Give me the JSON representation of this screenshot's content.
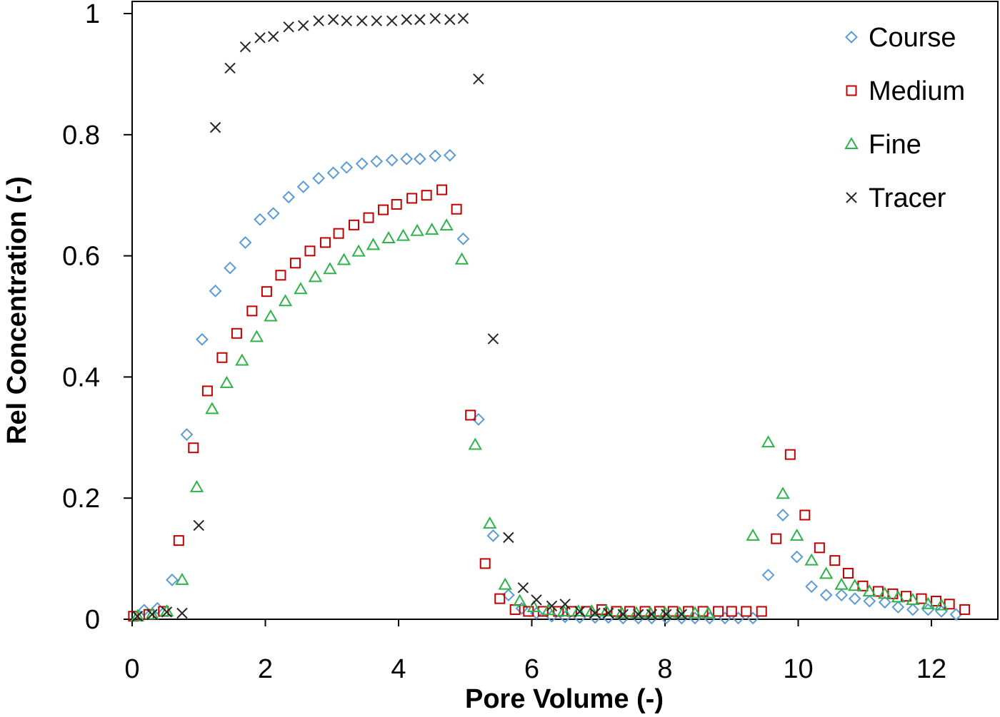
{
  "chart_data": {
    "type": "scatter",
    "title": "",
    "xlabel": "Pore Volume  (-)",
    "ylabel": "Rel Concentration  (-)",
    "xlim": [
      0,
      12.5
    ],
    "ylim": [
      0,
      1
    ],
    "xticks": [
      0,
      2,
      4,
      6,
      8,
      10,
      12
    ],
    "yticks": [
      0,
      0.2,
      0.4,
      0.6,
      0.8,
      1
    ],
    "xtick_labels": [
      "0",
      "2",
      "4",
      "6",
      "8",
      "10",
      "12"
    ],
    "ytick_labels": [
      "0",
      "0.2",
      "0.4",
      "0.6",
      "0.8",
      "1"
    ],
    "grid": false,
    "legend_position": "top-right",
    "series": [
      {
        "name": "Course",
        "marker": "diamond",
        "color": "#5B9BD5",
        "points": [
          [
            0.18,
            0.015
          ],
          [
            0.38,
            0.018
          ],
          [
            0.6,
            0.065
          ],
          [
            0.82,
            0.305
          ],
          [
            1.05,
            0.462
          ],
          [
            1.25,
            0.542
          ],
          [
            1.47,
            0.58
          ],
          [
            1.7,
            0.622
          ],
          [
            1.92,
            0.66
          ],
          [
            2.12,
            0.67
          ],
          [
            2.35,
            0.697
          ],
          [
            2.57,
            0.714
          ],
          [
            2.8,
            0.728
          ],
          [
            3.02,
            0.737
          ],
          [
            3.22,
            0.746
          ],
          [
            3.45,
            0.752
          ],
          [
            3.67,
            0.756
          ],
          [
            3.9,
            0.758
          ],
          [
            4.12,
            0.76
          ],
          [
            4.32,
            0.76
          ],
          [
            4.55,
            0.765
          ],
          [
            4.77,
            0.766
          ],
          [
            4.97,
            0.628
          ],
          [
            5.2,
            0.33
          ],
          [
            5.42,
            0.138
          ],
          [
            5.65,
            0.04
          ],
          [
            5.85,
            0.018
          ],
          [
            6.07,
            0.01
          ],
          [
            6.3,
            0.005
          ],
          [
            6.5,
            0.004
          ],
          [
            6.72,
            0.003
          ],
          [
            6.95,
            0.003
          ],
          [
            7.15,
            0.003
          ],
          [
            7.37,
            0.002
          ],
          [
            7.6,
            0.002
          ],
          [
            7.8,
            0.002
          ],
          [
            8.02,
            0.002
          ],
          [
            8.25,
            0.002
          ],
          [
            8.45,
            0.002
          ],
          [
            8.67,
            0.002
          ],
          [
            8.9,
            0.002
          ],
          [
            9.1,
            0.002
          ],
          [
            9.32,
            0.002
          ],
          [
            9.55,
            0.073
          ],
          [
            9.77,
            0.172
          ],
          [
            9.98,
            0.103
          ],
          [
            10.2,
            0.054
          ],
          [
            10.42,
            0.04
          ],
          [
            10.65,
            0.04
          ],
          [
            10.85,
            0.034
          ],
          [
            11.07,
            0.03
          ],
          [
            11.3,
            0.028
          ],
          [
            11.5,
            0.02
          ],
          [
            11.72,
            0.016
          ],
          [
            11.95,
            0.016
          ],
          [
            12.15,
            0.013
          ],
          [
            12.37,
            0.008
          ]
        ]
      },
      {
        "name": "Medium",
        "marker": "square",
        "color": "#C00000",
        "points": [
          [
            0.02,
            0.005
          ],
          [
            0.25,
            0.008
          ],
          [
            0.47,
            0.013
          ],
          [
            0.7,
            0.13
          ],
          [
            0.92,
            0.283
          ],
          [
            1.13,
            0.377
          ],
          [
            1.35,
            0.432
          ],
          [
            1.57,
            0.472
          ],
          [
            1.8,
            0.509
          ],
          [
            2.02,
            0.541
          ],
          [
            2.23,
            0.568
          ],
          [
            2.45,
            0.588
          ],
          [
            2.67,
            0.608
          ],
          [
            2.9,
            0.622
          ],
          [
            3.1,
            0.637
          ],
          [
            3.33,
            0.651
          ],
          [
            3.55,
            0.663
          ],
          [
            3.77,
            0.676
          ],
          [
            3.97,
            0.685
          ],
          [
            4.2,
            0.695
          ],
          [
            4.42,
            0.7
          ],
          [
            4.65,
            0.709
          ],
          [
            4.87,
            0.677
          ],
          [
            5.08,
            0.337
          ],
          [
            5.3,
            0.092
          ],
          [
            5.52,
            0.034
          ],
          [
            5.75,
            0.016
          ],
          [
            5.95,
            0.013
          ],
          [
            6.17,
            0.013
          ],
          [
            6.4,
            0.013
          ],
          [
            6.6,
            0.013
          ],
          [
            6.82,
            0.013
          ],
          [
            7.05,
            0.016
          ],
          [
            7.27,
            0.013
          ],
          [
            7.47,
            0.013
          ],
          [
            7.7,
            0.013
          ],
          [
            7.92,
            0.013
          ],
          [
            8.12,
            0.013
          ],
          [
            8.35,
            0.013
          ],
          [
            8.57,
            0.013
          ],
          [
            8.8,
            0.013
          ],
          [
            9.0,
            0.013
          ],
          [
            9.22,
            0.013
          ],
          [
            9.45,
            0.013
          ],
          [
            9.67,
            0.133
          ],
          [
            9.88,
            0.272
          ],
          [
            10.1,
            0.172
          ],
          [
            10.32,
            0.118
          ],
          [
            10.55,
            0.097
          ],
          [
            10.75,
            0.076
          ],
          [
            10.97,
            0.055
          ],
          [
            11.2,
            0.046
          ],
          [
            11.42,
            0.042
          ],
          [
            11.62,
            0.038
          ],
          [
            11.85,
            0.034
          ],
          [
            12.07,
            0.03
          ],
          [
            12.27,
            0.025
          ],
          [
            12.5,
            0.016
          ]
        ]
      },
      {
        "name": "Fine",
        "marker": "triangle",
        "color": "#2DB34A",
        "points": [
          [
            0.08,
            0.005
          ],
          [
            0.3,
            0.008
          ],
          [
            0.52,
            0.013
          ],
          [
            0.75,
            0.065
          ],
          [
            0.97,
            0.218
          ],
          [
            1.2,
            0.347
          ],
          [
            1.42,
            0.39
          ],
          [
            1.65,
            0.427
          ],
          [
            1.87,
            0.466
          ],
          [
            2.08,
            0.5
          ],
          [
            2.3,
            0.525
          ],
          [
            2.53,
            0.545
          ],
          [
            2.75,
            0.565
          ],
          [
            2.97,
            0.578
          ],
          [
            3.18,
            0.593
          ],
          [
            3.4,
            0.607
          ],
          [
            3.62,
            0.618
          ],
          [
            3.85,
            0.629
          ],
          [
            4.07,
            0.633
          ],
          [
            4.28,
            0.641
          ],
          [
            4.5,
            0.643
          ],
          [
            4.72,
            0.65
          ],
          [
            4.95,
            0.594
          ],
          [
            5.15,
            0.288
          ],
          [
            5.37,
            0.158
          ],
          [
            5.6,
            0.057
          ],
          [
            5.82,
            0.03
          ],
          [
            6.03,
            0.02
          ],
          [
            6.25,
            0.015
          ],
          [
            6.48,
            0.013
          ],
          [
            6.7,
            0.013
          ],
          [
            6.9,
            0.013
          ],
          [
            7.12,
            0.013
          ],
          [
            7.35,
            0.01
          ],
          [
            7.57,
            0.01
          ],
          [
            7.78,
            0.01
          ],
          [
            8.0,
            0.01
          ],
          [
            8.22,
            0.01
          ],
          [
            8.45,
            0.01
          ],
          [
            8.65,
            0.01
          ],
          [
            9.32,
            0.138
          ],
          [
            9.55,
            0.292
          ],
          [
            9.77,
            0.207
          ],
          [
            9.98,
            0.138
          ],
          [
            10.2,
            0.097
          ],
          [
            10.42,
            0.075
          ],
          [
            10.65,
            0.057
          ],
          [
            10.85,
            0.055
          ],
          [
            11.07,
            0.046
          ],
          [
            11.3,
            0.042
          ],
          [
            11.5,
            0.036
          ],
          [
            11.72,
            0.032
          ],
          [
            11.95,
            0.025
          ],
          [
            12.15,
            0.023
          ]
        ]
      },
      {
        "name": "Tracer",
        "marker": "x",
        "color": "#262626",
        "points": [
          [
            0.08,
            0.005
          ],
          [
            0.3,
            0.008
          ],
          [
            0.52,
            0.012
          ],
          [
            0.75,
            0.01
          ],
          [
            1.0,
            0.155
          ],
          [
            1.25,
            0.812
          ],
          [
            1.47,
            0.91
          ],
          [
            1.7,
            0.945
          ],
          [
            1.92,
            0.96
          ],
          [
            2.12,
            0.962
          ],
          [
            2.35,
            0.978
          ],
          [
            2.57,
            0.98
          ],
          [
            2.8,
            0.988
          ],
          [
            3.02,
            0.99
          ],
          [
            3.22,
            0.988
          ],
          [
            3.45,
            0.988
          ],
          [
            3.67,
            0.988
          ],
          [
            3.9,
            0.988
          ],
          [
            4.12,
            0.99
          ],
          [
            4.32,
            0.99
          ],
          [
            4.55,
            0.992
          ],
          [
            4.77,
            0.99
          ],
          [
            4.97,
            0.992
          ],
          [
            5.2,
            0.892
          ],
          [
            5.42,
            0.463
          ],
          [
            5.65,
            0.135
          ],
          [
            5.87,
            0.052
          ],
          [
            6.07,
            0.032
          ],
          [
            6.3,
            0.022
          ],
          [
            6.5,
            0.025
          ],
          [
            6.72,
            0.013
          ],
          [
            6.95,
            0.01
          ],
          [
            7.15,
            0.01
          ],
          [
            7.37,
            0.008
          ],
          [
            7.6,
            0.008
          ],
          [
            7.8,
            0.008
          ],
          [
            8.02,
            0.008
          ],
          [
            8.25,
            0.008
          ]
        ]
      }
    ]
  }
}
